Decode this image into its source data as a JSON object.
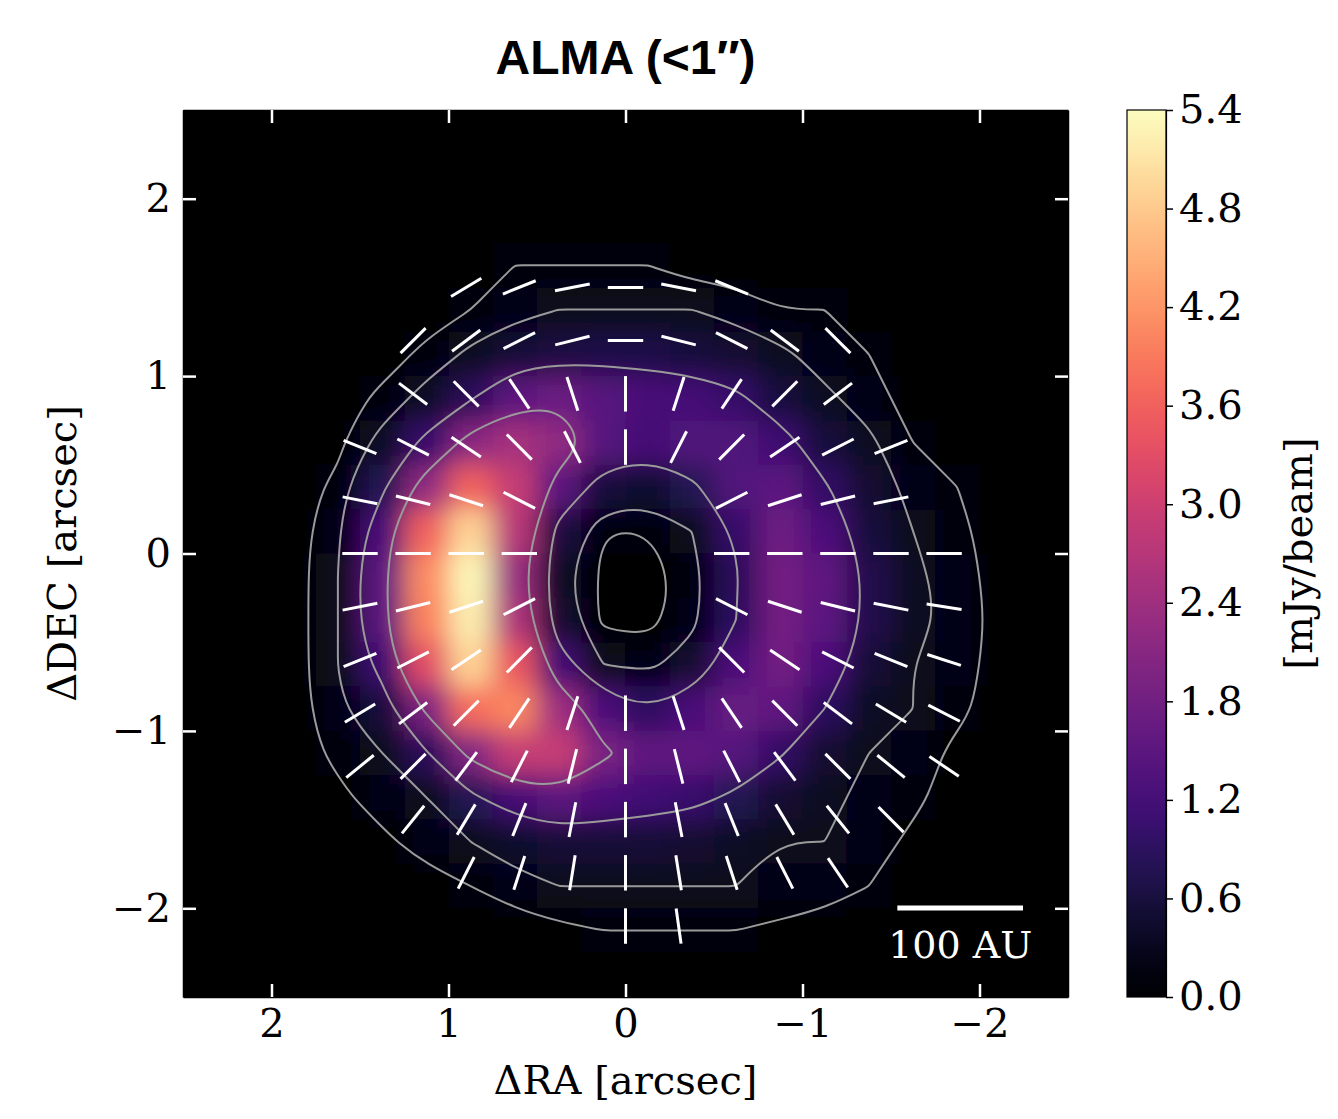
{
  "chart_data": {
    "type": "heatmap",
    "title": "ALMA (<1″)",
    "xlabel": "ΔRA [arcsec]",
    "ylabel": "ΔDEC [arcsec]",
    "xlim": [
      2.5,
      -2.5
    ],
    "ylim": [
      -2.5,
      2.5
    ],
    "xticks": [
      2,
      1,
      0,
      {
        "value": -1,
        "label": "−1"
      },
      {
        "value": -2,
        "label": "−2"
      }
    ],
    "yticks": [
      {
        "value": -2,
        "label": "−2"
      },
      {
        "value": -1,
        "label": "−1"
      },
      0,
      1,
      2
    ],
    "colorbar": {
      "range": [
        0,
        5.4
      ],
      "ticks": [
        {
          "value": 0,
          "label": "0.0"
        },
        0.6,
        1.2,
        1.8,
        2.4,
        {
          "value": 3,
          "label": "3.0"
        },
        3.6,
        4.2,
        4.8,
        5.4
      ],
      "label": "[mJy/beam]"
    },
    "intensity": {
      "x": [
        2.375,
        2.125,
        1.875,
        1.625,
        1.375,
        1.125,
        0.875,
        0.625,
        0.375,
        0.125,
        -0.125,
        -0.375,
        -0.625,
        -0.875,
        -1.125,
        -1.375,
        -1.625,
        -1.875,
        -2.125,
        -2.375
      ],
      "y": [
        2.375,
        2.125,
        1.875,
        1.625,
        1.375,
        1.125,
        0.875,
        0.625,
        0.375,
        0.125,
        -0.125,
        -0.375,
        -0.625,
        -0.875,
        -1.125,
        -1.375,
        -1.625,
        -1.875,
        -2.125,
        -2.375
      ],
      "values": [
        [
          0,
          0,
          0,
          0,
          0,
          0,
          0,
          0,
          0,
          0,
          0,
          0,
          0,
          0,
          0,
          0,
          0,
          0,
          0,
          0
        ],
        [
          0,
          0,
          0,
          0,
          0,
          0,
          0,
          0,
          0,
          0,
          0,
          0,
          0,
          0,
          0,
          0,
          0,
          0,
          0,
          0
        ],
        [
          0,
          0,
          0,
          0,
          0,
          0,
          0,
          0,
          0,
          0,
          0,
          0,
          0,
          0,
          0,
          0,
          0,
          0,
          0,
          0
        ],
        [
          0,
          0,
          0,
          0,
          0,
          0,
          0,
          0.1,
          0.1,
          0.1,
          0.1,
          0,
          0,
          0,
          0,
          0,
          0,
          0,
          0,
          0
        ],
        [
          0,
          0,
          0,
          0,
          0,
          0,
          0.1,
          0.2,
          0.3,
          0.3,
          0.3,
          0.3,
          0.2,
          0.1,
          0.1,
          0,
          0,
          0,
          0,
          0
        ],
        [
          0,
          0,
          0,
          0,
          0,
          0.15,
          0.35,
          0.55,
          0.65,
          0.7,
          0.7,
          0.6,
          0.5,
          0.35,
          0.2,
          0.1,
          0,
          0,
          0,
          0
        ],
        [
          0,
          0,
          0,
          0,
          0.15,
          0.4,
          0.85,
          1.5,
          1.7,
          1.45,
          1.25,
          1.2,
          1.0,
          0.6,
          0.35,
          0.2,
          0,
          0,
          0,
          0
        ],
        [
          0,
          0,
          0,
          0.05,
          0.4,
          1.05,
          2.1,
          2.5,
          2.2,
          1.45,
          1.2,
          1.35,
          1.35,
          1.1,
          0.6,
          0.35,
          0.1,
          0,
          0,
          0
        ],
        [
          0,
          0,
          0,
          0.15,
          0.8,
          2.2,
          3.6,
          2.9,
          1.5,
          0.6,
          0.45,
          0.8,
          1.35,
          1.5,
          0.95,
          0.5,
          0.2,
          0.1,
          0,
          0
        ],
        [
          0,
          0,
          0,
          0.25,
          1.25,
          3.6,
          4.9,
          2.7,
          0.65,
          0.1,
          0.1,
          0.3,
          1.0,
          1.75,
          1.3,
          0.6,
          0.3,
          0.15,
          0,
          0
        ],
        [
          0,
          0,
          0,
          0.3,
          1.5,
          4.1,
          5.3,
          2.3,
          0.4,
          0.05,
          0.05,
          0.15,
          0.85,
          1.8,
          1.55,
          0.75,
          0.35,
          0.2,
          0,
          0
        ],
        [
          0,
          0,
          0,
          0.3,
          1.5,
          4.0,
          5.2,
          2.6,
          0.5,
          0.05,
          0.05,
          0.2,
          0.9,
          1.8,
          1.5,
          0.75,
          0.35,
          0.25,
          0,
          0
        ],
        [
          0,
          0,
          0,
          0.3,
          1.1,
          3.3,
          4.9,
          3.45,
          1.2,
          0.3,
          0.2,
          0.5,
          1.3,
          1.8,
          1.3,
          0.55,
          0.3,
          0.2,
          0,
          0
        ],
        [
          0,
          0,
          0,
          0.25,
          0.6,
          1.95,
          3.75,
          4.05,
          2.4,
          1.3,
          0.9,
          1.25,
          1.65,
          1.55,
          0.9,
          0.4,
          0.3,
          0.15,
          0,
          0
        ],
        [
          0,
          0,
          0,
          0.15,
          0.3,
          0.85,
          2.0,
          2.9,
          2.9,
          1.9,
          1.55,
          1.55,
          1.4,
          0.95,
          0.5,
          0.3,
          0.2,
          0.05,
          0,
          0
        ],
        [
          0,
          0,
          0,
          0.05,
          0.2,
          0.3,
          0.8,
          1.2,
          1.5,
          1.3,
          1.15,
          1.05,
          0.8,
          0.5,
          0.35,
          0.25,
          0.15,
          0,
          0,
          0
        ],
        [
          0,
          0,
          0,
          0,
          0.05,
          0.2,
          0.3,
          0.45,
          0.55,
          0.55,
          0.55,
          0.5,
          0.4,
          0.3,
          0.3,
          0.2,
          0.05,
          0,
          0,
          0
        ],
        [
          0,
          0,
          0,
          0,
          0,
          0,
          0.1,
          0.2,
          0.3,
          0.3,
          0.3,
          0.3,
          0.3,
          0.25,
          0.2,
          0.1,
          0,
          0,
          0,
          0
        ],
        [
          0,
          0,
          0,
          0,
          0,
          0,
          0,
          0,
          0.05,
          0.1,
          0.1,
          0.1,
          0.1,
          0.05,
          0,
          0,
          0,
          0,
          0,
          0
        ],
        [
          0,
          0,
          0,
          0,
          0,
          0,
          0,
          0,
          0,
          0,
          0,
          0,
          0,
          0,
          0,
          0,
          0,
          0,
          0,
          0
        ]
      ]
    },
    "contour_levels": [
      0.1,
      0.3,
      0.9,
      1.8
    ],
    "vectors": {
      "x": [
        0.9,
        0.6,
        0.3,
        0,
        -0.3,
        -0.6,
        1.2,
        0.9,
        0.6,
        0.3,
        0,
        -0.3,
        -0.6,
        -0.9,
        -1.2,
        1.2,
        0.9,
        0.6,
        0.3,
        0,
        -0.3,
        -0.6,
        -0.9,
        -1.2,
        1.5,
        1.2,
        0.9,
        0.6,
        0.3,
        0,
        -0.3,
        -0.6,
        -0.9,
        -1.2,
        -1.5,
        1.5,
        1.2,
        0.9,
        0.6,
        -0.6,
        -0.9,
        -1.2,
        -1.5,
        1.5,
        1.2,
        0.9,
        0.6,
        -0.6,
        -0.9,
        -1.2,
        -1.5,
        -1.8,
        1.5,
        1.2,
        0.9,
        0.6,
        -0.6,
        -0.9,
        -1.2,
        -1.5,
        -1.8,
        1.5,
        1.2,
        0.9,
        0.6,
        -0.6,
        -0.9,
        -1.2,
        -1.5,
        -1.8,
        1.5,
        1.2,
        0.9,
        0.6,
        0.3,
        0,
        -0.3,
        -0.6,
        -0.9,
        -1.2,
        -1.5,
        -1.8,
        1.5,
        1.2,
        0.9,
        0.6,
        0.3,
        0,
        -0.3,
        -0.6,
        -0.9,
        -1.2,
        -1.5,
        -1.8,
        1.2,
        0.9,
        0.6,
        0.3,
        0,
        -0.3,
        -0.6,
        -0.9,
        -1.2,
        -1.5,
        0.9,
        0.6,
        0.3,
        0,
        -0.3,
        -0.6,
        -0.9,
        -1.2,
        0,
        -0.3
      ],
      "y": [
        1.5,
        1.5,
        1.5,
        1.5,
        1.5,
        1.5,
        1.2,
        1.2,
        1.2,
        1.2,
        1.2,
        1.2,
        1.2,
        1.2,
        1.2,
        0.9,
        0.9,
        0.9,
        0.9,
        0.9,
        0.9,
        0.9,
        0.9,
        0.9,
        0.6,
        0.6,
        0.6,
        0.6,
        0.6,
        0.6,
        0.6,
        0.6,
        0.6,
        0.6,
        0.6,
        0.3,
        0.3,
        0.3,
        0.3,
        0.3,
        0.3,
        0.3,
        0.3,
        0,
        0,
        0,
        0,
        0,
        0,
        0,
        0,
        0,
        -0.3,
        -0.3,
        -0.3,
        -0.3,
        -0.3,
        -0.3,
        -0.3,
        -0.3,
        -0.3,
        -0.6,
        -0.6,
        -0.6,
        -0.6,
        -0.6,
        -0.6,
        -0.6,
        -0.6,
        -0.6,
        -0.9,
        -0.9,
        -0.9,
        -0.9,
        -0.9,
        -0.9,
        -0.9,
        -0.9,
        -0.9,
        -0.9,
        -0.9,
        -0.9,
        -1.2,
        -1.2,
        -1.2,
        -1.2,
        -1.2,
        -1.2,
        -1.2,
        -1.2,
        -1.2,
        -1.2,
        -1.2,
        -1.2,
        -1.5,
        -1.5,
        -1.5,
        -1.5,
        -1.5,
        -1.5,
        -1.5,
        -1.5,
        -1.5,
        -1.5,
        -1.8,
        -1.8,
        -1.8,
        -1.8,
        -1.8,
        -1.8,
        -1.8,
        -1.8,
        -2.1,
        -2.1
      ],
      "pa": [
        121,
        112,
        101,
        90,
        79,
        68,
        135,
        127,
        117,
        104,
        90,
        76,
        63,
        53,
        45,
        53,
        45,
        34,
        18,
        0,
        162,
        146,
        135,
        127,
        68,
        63,
        56,
        45,
        27,
        0,
        153,
        135,
        124,
        117,
        112,
        79,
        76,
        72,
        63,
        117,
        108,
        104,
        101,
        90,
        90,
        90,
        90,
        90,
        90,
        90,
        90,
        90,
        101,
        104,
        108,
        117,
        63,
        72,
        76,
        79,
        81,
        112,
        117,
        124,
        135,
        45,
        56,
        63,
        68,
        72,
        121,
        127,
        135,
        146,
        162,
        0,
        18,
        34,
        45,
        53,
        59,
        63,
        129,
        135,
        143,
        153,
        166,
        0,
        14,
        27,
        37,
        45,
        51,
        56,
        141,
        149,
        158,
        169,
        0,
        11,
        22,
        31,
        39,
        45,
        153,
        162,
        171,
        0,
        9,
        18,
        27,
        34,
        0,
        8
      ]
    },
    "scale_bar": {
      "label": "100 AU",
      "length": 0.71
    }
  }
}
